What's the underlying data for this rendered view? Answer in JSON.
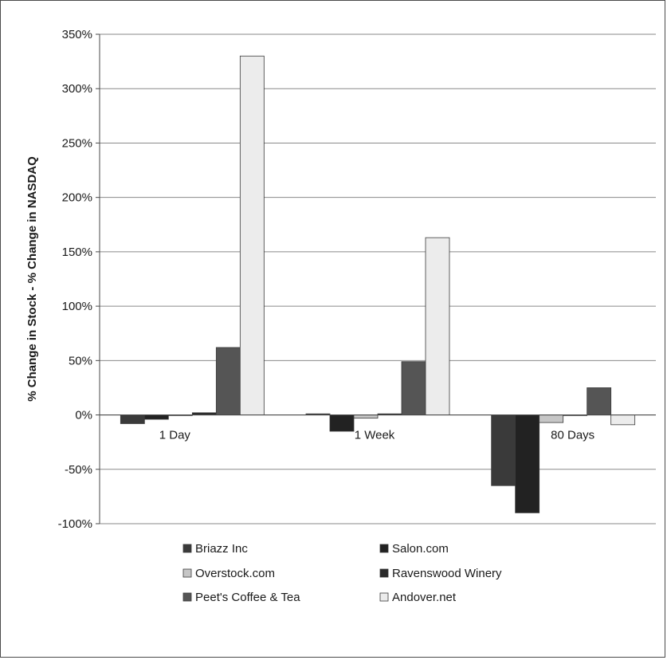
{
  "chart_data": {
    "type": "bar",
    "title": "",
    "xlabel": "",
    "ylabel": "% Change in Stock - % Change in NASDAQ",
    "ylim": [
      -100,
      350
    ],
    "ytick_step": 50,
    "ytick_labels": [
      "350%",
      "300%",
      "250%",
      "200%",
      "150%",
      "100%",
      "50%",
      "0%",
      "-50%",
      "-100%"
    ],
    "grid": true,
    "legend_position": "bottom",
    "categories": [
      "1 Day",
      "1 Week",
      "80 Days"
    ],
    "series": [
      {
        "name": "Briazz Inc",
        "color": "#3a3a3a",
        "values": [
          -8,
          1,
          -65
        ]
      },
      {
        "name": "Salon.com",
        "color": "#222222",
        "values": [
          -4,
          -15,
          -90
        ]
      },
      {
        "name": "Overstock.com",
        "color": "#c6c6c6",
        "values": [
          0,
          -3,
          -7
        ]
      },
      {
        "name": "Ravenswood Winery",
        "color": "#2a2a2a",
        "values": [
          2,
          1,
          0
        ]
      },
      {
        "name": "Peet's Coffee & Tea",
        "color": "#555555",
        "values": [
          62,
          49,
          25
        ]
      },
      {
        "name": "Andover.net",
        "color": "#ececec",
        "values": [
          330,
          163,
          -9
        ]
      }
    ]
  }
}
